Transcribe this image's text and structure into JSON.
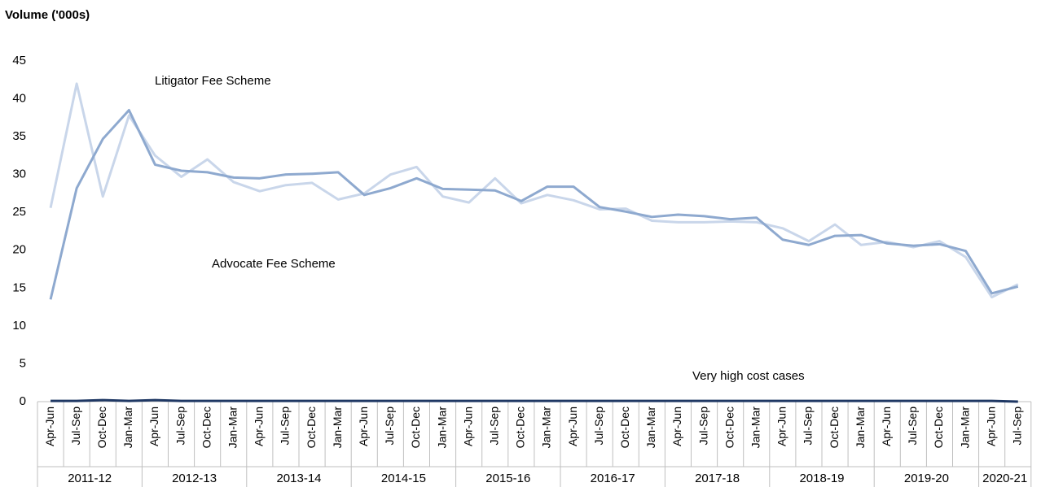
{
  "chart_data": {
    "type": "line",
    "title": "Volume ('000s)",
    "categories": [
      "Apr-Jun",
      "Jul-Sep",
      "Oct-Dec",
      "Jan-Mar",
      "Apr-Jun",
      "Jul-Sep",
      "Oct-Dec",
      "Jan-Mar",
      "Apr-Jun",
      "Jul-Sep",
      "Oct-Dec",
      "Jan-Mar",
      "Apr-Jun",
      "Jul-Sep",
      "Oct-Dec",
      "Jan-Mar",
      "Apr-Jun",
      "Jul-Sep",
      "Oct-Dec",
      "Jan-Mar",
      "Apr-Jun",
      "Jul-Sep",
      "Oct-Dec",
      "Jan-Mar",
      "Apr-Jun",
      "Jul-Sep",
      "Oct-Dec",
      "Jan-Mar",
      "Apr-Jun",
      "Jul-Sep",
      "Oct-Dec",
      "Jan-Mar",
      "Apr-Jun",
      "Jul-Sep",
      "Oct-Dec",
      "Jan-Mar",
      "Apr-Jun",
      "Jul-Sep"
    ],
    "category_groups": [
      "2011-12",
      "2012-13",
      "2013-14",
      "2014-15",
      "2015-16",
      "2016-17",
      "2017-18",
      "2018-19",
      "2019-20",
      "2020-21"
    ],
    "series": [
      {
        "name": "Litigator Fee Scheme",
        "color": "#c9d6ea",
        "values": [
          25.6,
          42,
          27.1,
          37.8,
          32.5,
          29.7,
          32,
          29,
          27.8,
          28.6,
          28.9,
          26.7,
          27.5,
          30,
          31,
          27.1,
          26.3,
          29.5,
          26.2,
          27.3,
          26.6,
          25.4,
          25.5,
          23.9,
          23.7,
          23.7,
          23.8,
          23.7,
          22.9,
          21.2,
          23.4,
          20.7,
          21.1,
          20.4,
          21.2,
          19.1,
          13.8,
          15.5
        ]
      },
      {
        "name": "Advocate Fee Scheme",
        "color": "#8ea9cf",
        "values": [
          13.5,
          28.2,
          34.7,
          38.5,
          31.3,
          30.5,
          30.3,
          29.6,
          29.5,
          30,
          30.1,
          30.3,
          27.3,
          28.2,
          29.5,
          28.1,
          28,
          27.9,
          26.5,
          28.4,
          28.4,
          25.7,
          25.1,
          24.4,
          24.7,
          24.5,
          24.1,
          24.3,
          21.4,
          20.7,
          21.9,
          22,
          20.9,
          20.6,
          20.8,
          19.9,
          14.3,
          15.2
        ]
      },
      {
        "name": "Very high cost cases",
        "color": "#1f3864",
        "values": [
          0.1,
          0.1,
          0.2,
          0.1,
          0.2,
          0.1,
          0.1,
          0.1,
          0.1,
          0.1,
          0.1,
          0.1,
          0.1,
          0.1,
          0.1,
          0.1,
          0.1,
          0.1,
          0.1,
          0.1,
          0.1,
          0.1,
          0.1,
          0.1,
          0.1,
          0.1,
          0.1,
          0.1,
          0.1,
          0.1,
          0.1,
          0.1,
          0.1,
          0.1,
          0.1,
          0.1,
          0.1,
          0
        ]
      }
    ],
    "ylim": [
      0,
      45
    ],
    "yticks": [
      0,
      5,
      10,
      15,
      20,
      25,
      30,
      35,
      40,
      45
    ],
    "grid": false
  }
}
